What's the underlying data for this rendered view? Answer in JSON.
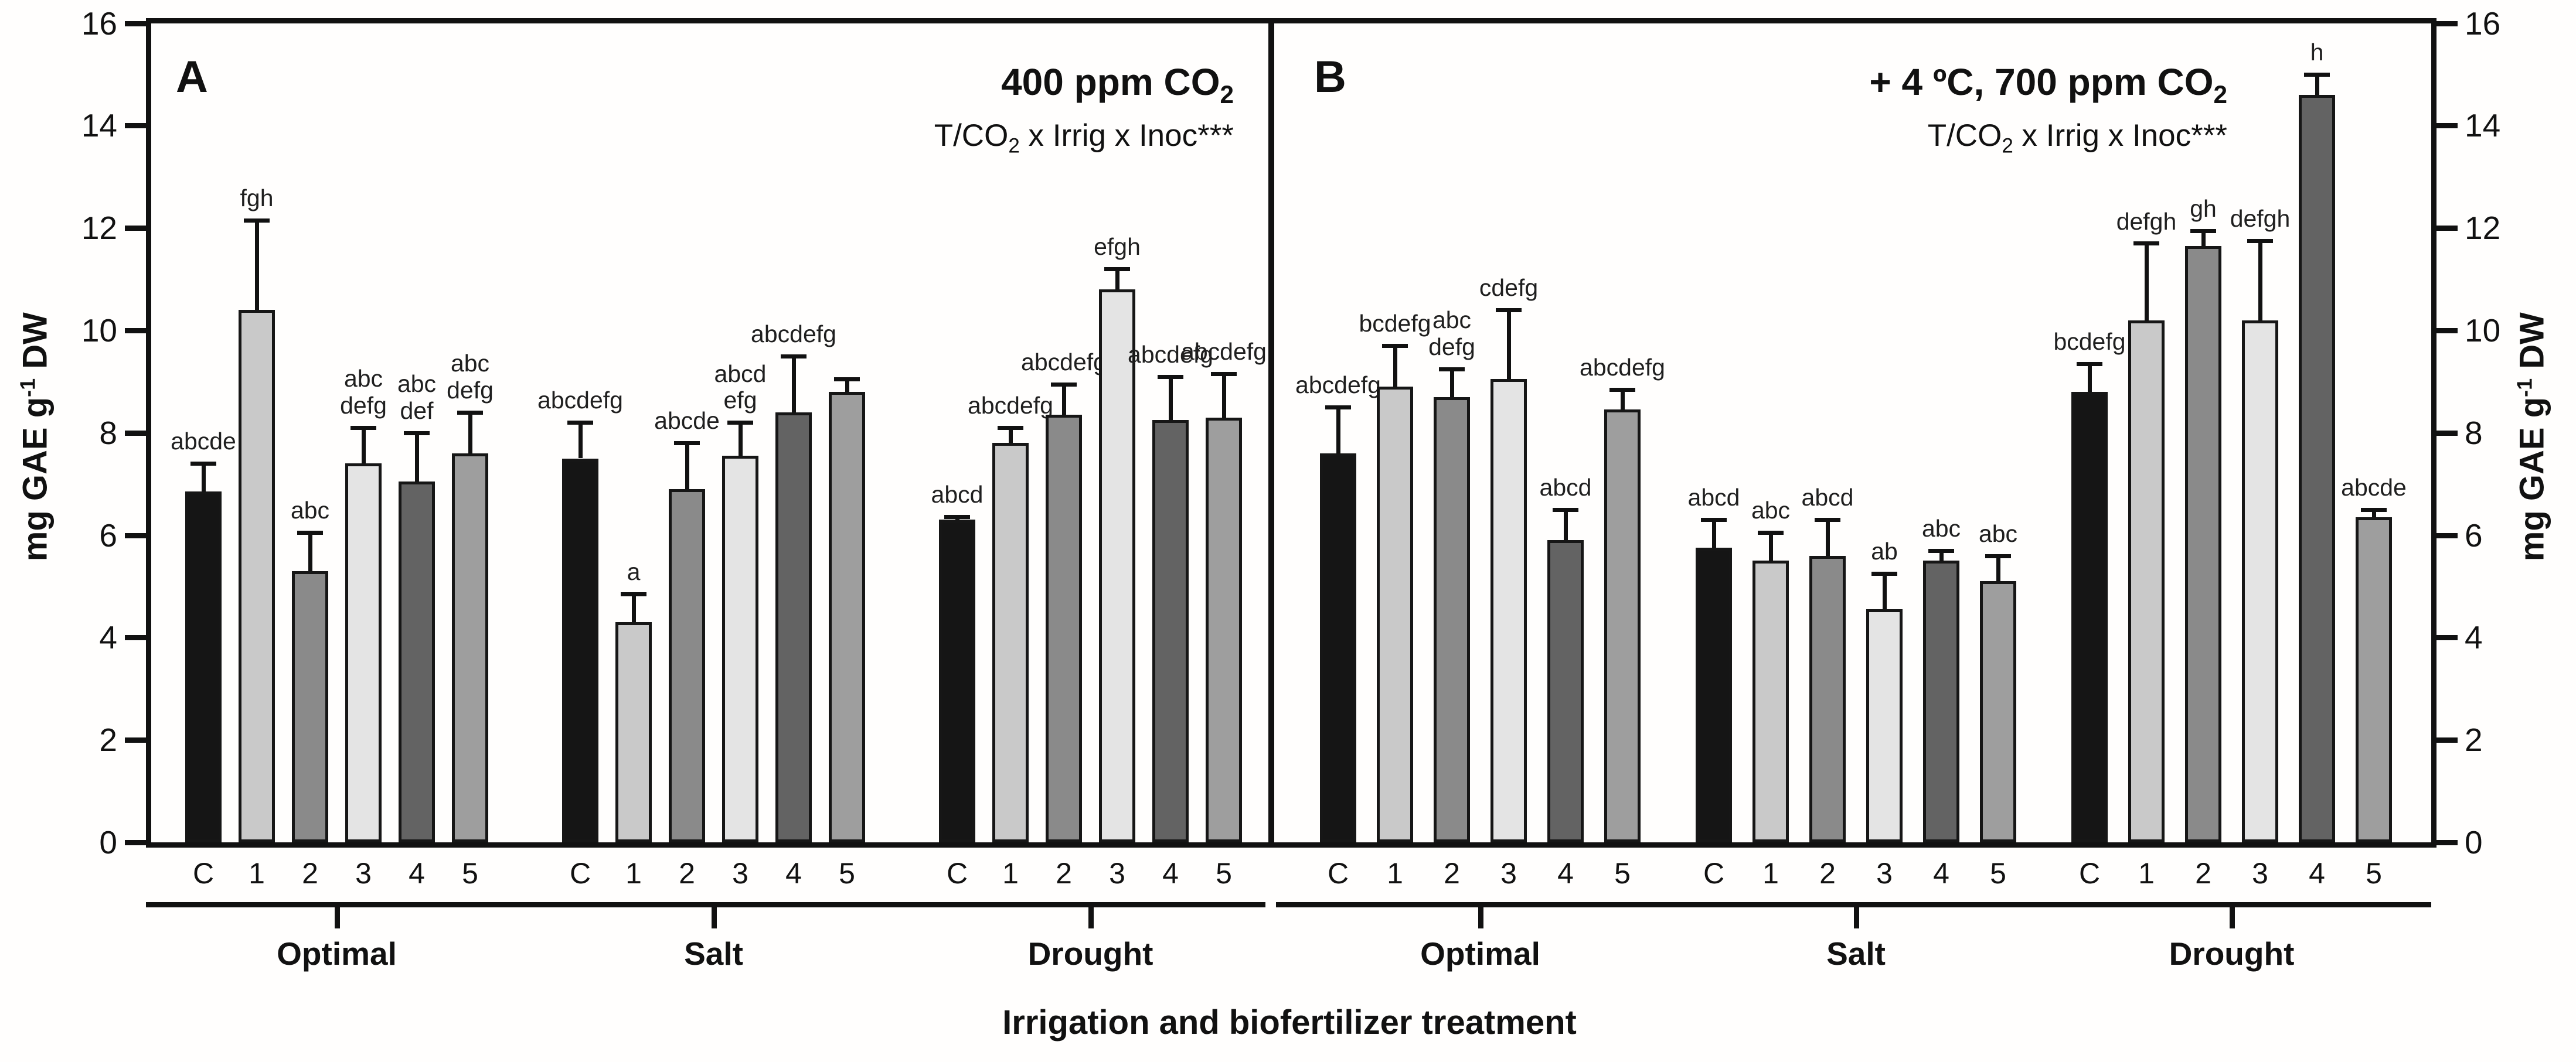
{
  "chart_data": {
    "type": "bar",
    "ylabel": "mg GAE g-1 DW",
    "ylabel_parts": {
      "main": "mg GAE g",
      "sup": "-1",
      "end": " DW"
    },
    "xlabel": "Irrigation and biofertilizer treatment",
    "ylim": [
      0,
      16
    ],
    "yticks": [
      0,
      2,
      4,
      6,
      8,
      10,
      12,
      14,
      16
    ],
    "grid": "off",
    "legend": "none",
    "categories": [
      "C",
      "1",
      "2",
      "3",
      "4",
      "5"
    ],
    "group_names": [
      "Optimal",
      "Salt",
      "Drought"
    ],
    "bar_colors": [
      "#151515",
      "#c9c9c9",
      "#8a8a8a",
      "#e4e4e4",
      "#636363",
      "#9e9e9e"
    ],
    "axis_color": "#111111",
    "background_color": "#fffefd",
    "panels": [
      {
        "label": "A",
        "title": "400 ppm CO2",
        "title_parts": {
          "pre": "400 ppm CO",
          "sub": "2"
        },
        "annotation": "T/CO2 x Irrig x Inoc***",
        "annotation_parts": {
          "pre": "T/CO",
          "sub": "2",
          "post": " x Irrig x Inoc***"
        },
        "groups": [
          {
            "name": "Optimal",
            "values": [
              6.85,
              10.4,
              5.3,
              7.4,
              7.05,
              7.6
            ],
            "errors_upper": [
              0.55,
              1.75,
              0.75,
              0.7,
              0.95,
              0.8
            ],
            "sig_letters": [
              "abcde",
              "fgh",
              "abc",
              "abc\ndefg",
              "abc\ndef",
              "abc\ndefg"
            ]
          },
          {
            "name": "Salt",
            "values": [
              7.5,
              4.3,
              6.9,
              7.55,
              8.4,
              8.8
            ],
            "errors_upper": [
              0.7,
              0.55,
              0.9,
              0.65,
              1.1,
              0.25
            ],
            "sig_letters": [
              "abcdefg",
              "a",
              "abcde",
              "abcd\nefg",
              "abcdefg",
              ""
            ]
          },
          {
            "name": "Drought",
            "values": [
              6.3,
              7.8,
              8.35,
              10.8,
              8.25,
              8.3
            ],
            "errors_upper": [
              0.06,
              0.3,
              0.6,
              0.4,
              0.85,
              0.85
            ],
            "sig_letters": [
              "abcd",
              "abcdefg",
              "abcdefg",
              "efgh",
              "abcdefg",
              "abcdefg"
            ]
          }
        ]
      },
      {
        "label": "B",
        "title": "+ 4 ºC, 700 ppm CO2",
        "title_parts": {
          "pre": "+ 4 ºC, 700 ppm CO",
          "sub": "2"
        },
        "annotation": "T/CO2 x Irrig x Inoc***",
        "annotation_parts": {
          "pre": "T/CO",
          "sub": "2",
          "post": " x Irrig x Inoc***"
        },
        "groups": [
          {
            "name": "Optimal",
            "values": [
              7.6,
              8.9,
              8.7,
              9.05,
              5.9,
              8.45
            ],
            "errors_upper": [
              0.9,
              0.8,
              0.55,
              1.35,
              0.6,
              0.4
            ],
            "sig_letters": [
              "abcdefg",
              "bcdefg",
              "abc\ndefg",
              "cdefg",
              "abcd",
              "abcdefg"
            ]
          },
          {
            "name": "Salt",
            "values": [
              5.75,
              5.5,
              5.6,
              4.55,
              5.5,
              5.1
            ],
            "errors_upper": [
              0.55,
              0.55,
              0.7,
              0.7,
              0.2,
              0.5
            ],
            "sig_letters": [
              "abcd",
              "abc",
              "abcd",
              "ab",
              "abc",
              "abc"
            ]
          },
          {
            "name": "Drought",
            "values": [
              8.8,
              10.2,
              11.65,
              10.2,
              14.6,
              6.35
            ],
            "errors_upper": [
              0.55,
              1.5,
              0.3,
              1.55,
              0.4,
              0.15
            ],
            "sig_letters": [
              "bcdefg",
              "defgh",
              "gh",
              "defgh",
              "h",
              "abcde"
            ]
          }
        ]
      }
    ]
  }
}
